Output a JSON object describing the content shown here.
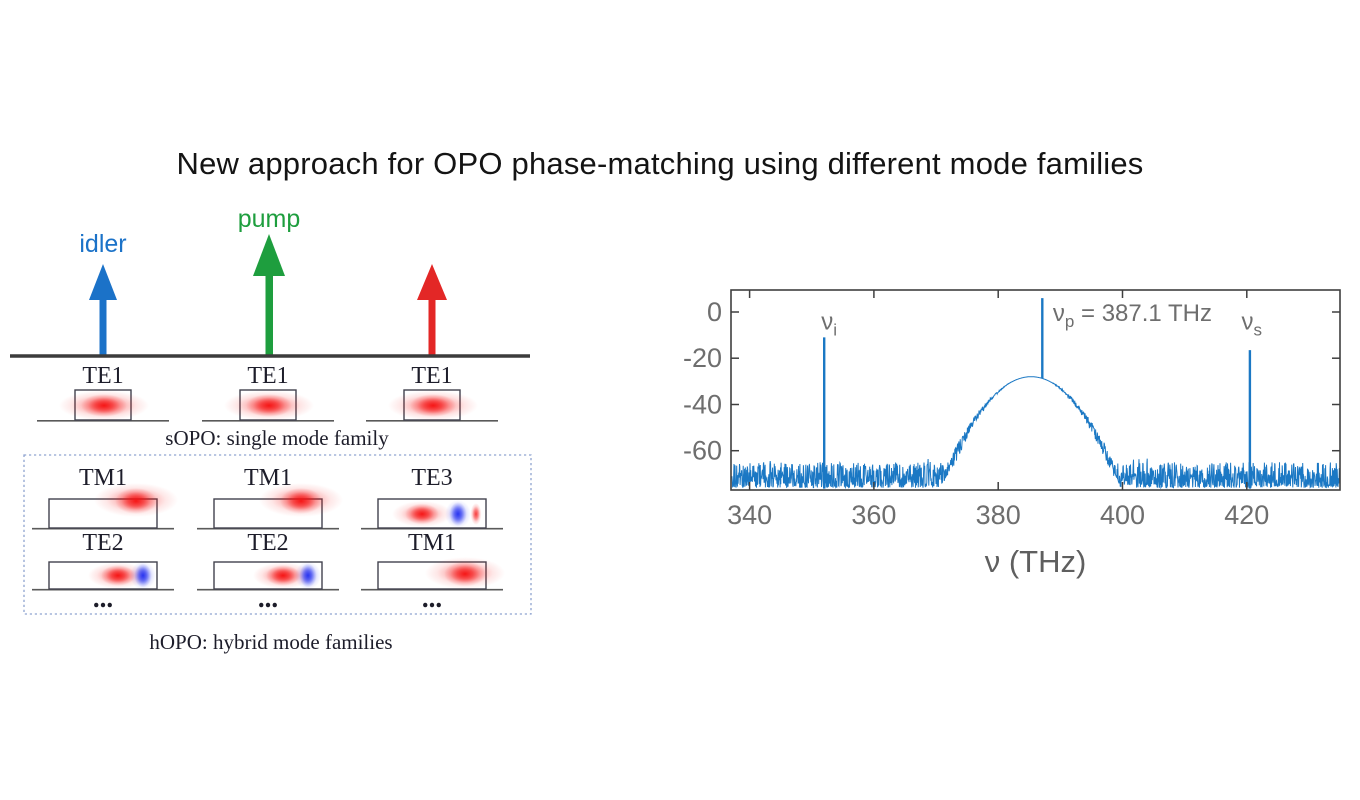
{
  "page": {
    "title": "New approach for OPO phase-matching using different mode families"
  },
  "colors": {
    "idler": "#1b72c8",
    "pump": "#1e9e3e",
    "signal": "#e32726",
    "baseline": "#3c3c3c",
    "dashed_box": "#8fa3d0",
    "mode_red": "#f51212",
    "mode_blue": "#2430f0"
  },
  "diagram": {
    "idler_label": "idler",
    "pump_label": "pump",
    "sopo": {
      "modes": [
        "TE1",
        "TE1",
        "TE1"
      ],
      "caption": "sOPO: single mode family"
    },
    "hopo": {
      "row1": [
        "TM1",
        "TM1",
        "TE3"
      ],
      "row2": [
        "TE2",
        "TE2",
        "TM1"
      ],
      "ellipsis": "...",
      "caption": "hOPO: hybrid mode families"
    }
  },
  "chart_data": {
    "type": "line",
    "description": "Optical output spectrum showing idler, pump and signal peaks above a noise floor with a broad pedestal around the pump",
    "xlabel": "ν (THz)",
    "xlim": [
      337,
      435
    ],
    "ylim": [
      -77,
      9.5
    ],
    "xticks": [
      340,
      360,
      380,
      400,
      420
    ],
    "yticks": [
      0,
      -20,
      -40,
      -60
    ],
    "grid": false,
    "legend": "none",
    "line_color": "#1b78c4",
    "axis_color": "#3f3f3f",
    "tick_label_color": "#6e6e6e",
    "noise_floor_mean_dB": -70,
    "noise_floor_range_dB": [
      -76,
      -65
    ],
    "pedestal": {
      "center_THz": 385.3,
      "peak_dB": -28,
      "quad_coeff_dB_per_THz2": 0.23,
      "extent_THz": [
        372,
        398
      ]
    },
    "peaks": [
      {
        "name": "idler",
        "x_THz": 352.0,
        "top_dB": -11,
        "label": {
          "sym": "ν",
          "sub": "i",
          "suffix": "",
          "x_THz": 352.8,
          "y_dB": -7.5,
          "anchor": "middle"
        }
      },
      {
        "name": "pump",
        "x_THz": 387.1,
        "top_dB": 6,
        "label": {
          "sym": "ν",
          "sub": "p",
          "suffix": " = 387.1 THz",
          "x_THz": 388.8,
          "y_dB": -4,
          "anchor": "start"
        }
      },
      {
        "name": "signal",
        "x_THz": 420.5,
        "top_dB": -16.5,
        "label": {
          "sym": "ν",
          "sub": "s",
          "suffix": "",
          "x_THz": 420.8,
          "y_dB": -7.5,
          "anchor": "middle"
        }
      }
    ]
  }
}
